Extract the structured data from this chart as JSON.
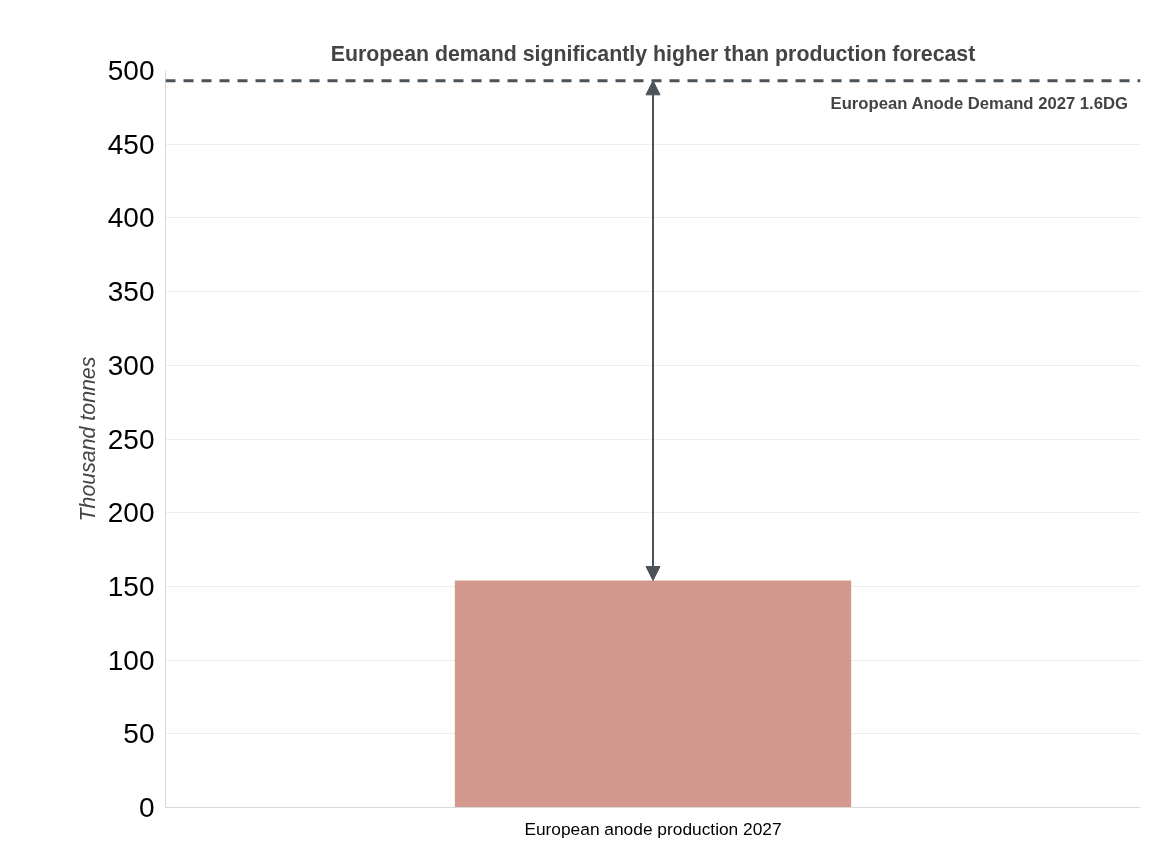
{
  "chart_data": {
    "type": "bar",
    "title": "European demand significantly higher than production forecast",
    "ylabel": "Thousand tonnes",
    "categories": [
      "European anode production 2027"
    ],
    "values": [
      154
    ],
    "color": "#d4998e",
    "ylim": [
      0,
      500
    ],
    "yticks": [
      0,
      50,
      100,
      150,
      200,
      250,
      300,
      350,
      400,
      450,
      500
    ],
    "grid": "y",
    "ref_lines": [
      {
        "axis": "y",
        "value": 493,
        "label": "European Anode Demand 2027 1.6DG",
        "color": "#4a525a",
        "line_style": "dashed"
      }
    ]
  }
}
